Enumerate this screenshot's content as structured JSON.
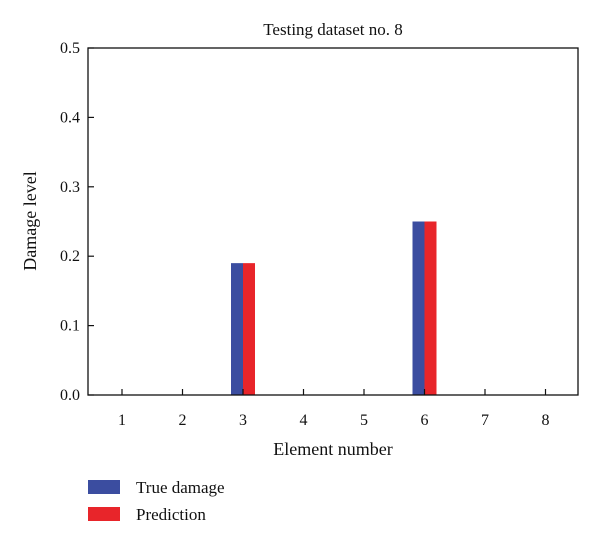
{
  "chart_data": {
    "type": "bar",
    "title": "Testing dataset no. 8",
    "xlabel": "Element number",
    "ylabel": "Damage level",
    "categories": [
      "1",
      "2",
      "3",
      "4",
      "5",
      "6",
      "7",
      "8"
    ],
    "series": [
      {
        "name": "True damage",
        "color": "#3b4da0",
        "values": [
          0,
          0,
          0.19,
          0,
          0,
          0.25,
          0,
          0
        ]
      },
      {
        "name": "Prediction",
        "color": "#e8252a",
        "values": [
          0,
          0,
          0.19,
          0,
          0,
          0.25,
          0,
          0
        ]
      }
    ],
    "ylim": [
      0,
      0.5
    ],
    "yticks": [
      "0.0",
      "0.1",
      "0.2",
      "0.3",
      "0.4",
      "0.5"
    ],
    "grid": false,
    "legend_position": "bottom-left",
    "title_color": "#e8403a"
  }
}
